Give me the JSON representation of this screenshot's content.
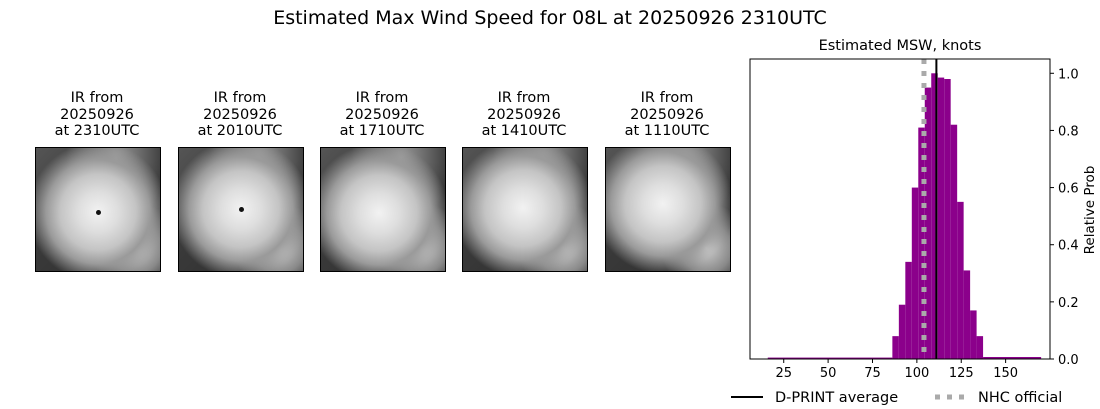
{
  "title": "Estimated Max Wind Speed for 08L at 20250926 2310UTC",
  "satellite_panels": [
    {
      "line1": "IR from",
      "line2": "20250926",
      "line3": "at 2310UTC",
      "eye_visible": true
    },
    {
      "line1": "IR from",
      "line2": "20250926",
      "line3": "at 2010UTC",
      "eye_visible": true
    },
    {
      "line1": "IR from",
      "line2": "20250926",
      "line3": "at 1710UTC",
      "eye_visible": false
    },
    {
      "line1": "IR from",
      "line2": "20250926",
      "line3": "at 1410UTC",
      "eye_visible": false
    },
    {
      "line1": "IR from",
      "line2": "20250926",
      "line3": "at 1110UTC",
      "eye_visible": false
    }
  ],
  "chart_data": {
    "type": "bar",
    "title": "Estimated MSW, knots",
    "xlabel": "",
    "ylabel": "Relative Prob",
    "xlim": [
      6,
      175
    ],
    "ylim": [
      0,
      1.05
    ],
    "xticks": [
      25,
      50,
      75,
      100,
      125,
      150
    ],
    "yticks": [
      0.0,
      0.2,
      0.4,
      0.6,
      0.8,
      1.0
    ],
    "ytick_labels": [
      "0.0",
      "0.2",
      "0.4",
      "0.6",
      "0.8",
      "1.0"
    ],
    "y_axis_side": "right",
    "grid": false,
    "bar_color": "#8b008b",
    "bars": [
      {
        "x0": 16,
        "x1": 86.2,
        "y": 0.005
      },
      {
        "x0": 86.2,
        "x1": 89.85,
        "y": 0.08
      },
      {
        "x0": 89.85,
        "x1": 93.5,
        "y": 0.19
      },
      {
        "x0": 93.5,
        "x1": 97.15,
        "y": 0.34
      },
      {
        "x0": 97.15,
        "x1": 100.8,
        "y": 0.6
      },
      {
        "x0": 100.8,
        "x1": 104.45,
        "y": 0.81
      },
      {
        "x0": 104.45,
        "x1": 108.1,
        "y": 0.95
      },
      {
        "x0": 108.1,
        "x1": 111.75,
        "y": 1.0
      },
      {
        "x0": 111.75,
        "x1": 115.4,
        "y": 0.985
      },
      {
        "x0": 115.4,
        "x1": 119.05,
        "y": 0.98
      },
      {
        "x0": 119.05,
        "x1": 122.7,
        "y": 0.82
      },
      {
        "x0": 122.7,
        "x1": 126.35,
        "y": 0.55
      },
      {
        "x0": 126.35,
        "x1": 130.0,
        "y": 0.31
      },
      {
        "x0": 130.0,
        "x1": 133.65,
        "y": 0.17
      },
      {
        "x0": 133.65,
        "x1": 137.3,
        "y": 0.08
      },
      {
        "x0": 137.3,
        "x1": 170,
        "y": 0.007
      }
    ],
    "lines": [
      {
        "name": "D-PRINT average",
        "x": 111,
        "color": "#000000",
        "style": "solid"
      },
      {
        "name": "NHC official",
        "x": 104,
        "color": "#aaaaaa",
        "style": "dotted"
      }
    ],
    "legend": {
      "placement": "bottom",
      "entries": [
        "D-PRINT average",
        "NHC official"
      ]
    }
  }
}
